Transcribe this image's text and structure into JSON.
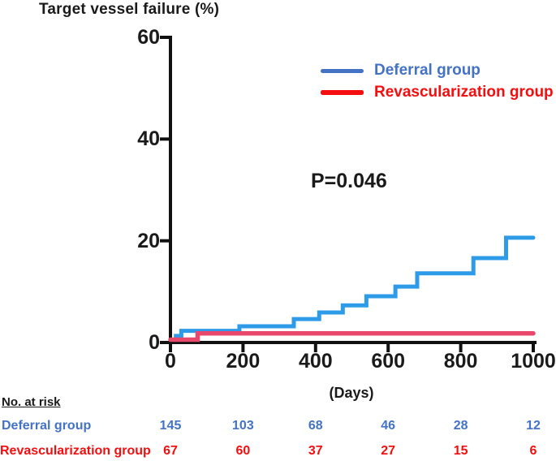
{
  "chart_data": {
    "type": "line",
    "subtype": "step-cumulative-incidence",
    "title": "Target vessel failure (%)",
    "xlabel": "(Days)",
    "p_value": "P=0.046",
    "xlim": [
      0,
      1000
    ],
    "ylim": [
      0,
      60
    ],
    "xticks": [
      0,
      200,
      400,
      600,
      800,
      1000
    ],
    "yticks": [
      0,
      20,
      40,
      60
    ],
    "grid": false,
    "legend_position": "upper-right-inside",
    "series": [
      {
        "name": "Deferral group",
        "curve_color": "#2E9BE8",
        "label_color": "#4472C4",
        "steps": [
          [
            0,
            0
          ],
          [
            15,
            1.3
          ],
          [
            30,
            2.3
          ],
          [
            190,
            3.2
          ],
          [
            340,
            4.6
          ],
          [
            410,
            5.9
          ],
          [
            475,
            7.3
          ],
          [
            540,
            9.1
          ],
          [
            620,
            11.0
          ],
          [
            680,
            13.6
          ],
          [
            835,
            16.6
          ],
          [
            925,
            20.6
          ]
        ],
        "end_day": 1000
      },
      {
        "name": "Revascularization group",
        "curve_color": "#E8486B",
        "label_color": "#F40E10",
        "steps": [
          [
            0,
            0
          ],
          [
            75,
            1.8
          ]
        ],
        "end_day": 1000
      }
    ],
    "risk_table": {
      "header": "No. at risk",
      "days": [
        0,
        200,
        400,
        600,
        800,
        1000
      ],
      "rows": [
        {
          "name": "Deferral group",
          "color": "#4472C4",
          "values": [
            145,
            103,
            68,
            46,
            28,
            12
          ]
        },
        {
          "name": "Revascularization group",
          "color": "#F40E10",
          "values": [
            67,
            60,
            37,
            27,
            15,
            6
          ]
        }
      ]
    },
    "axis_color": "#111111"
  }
}
